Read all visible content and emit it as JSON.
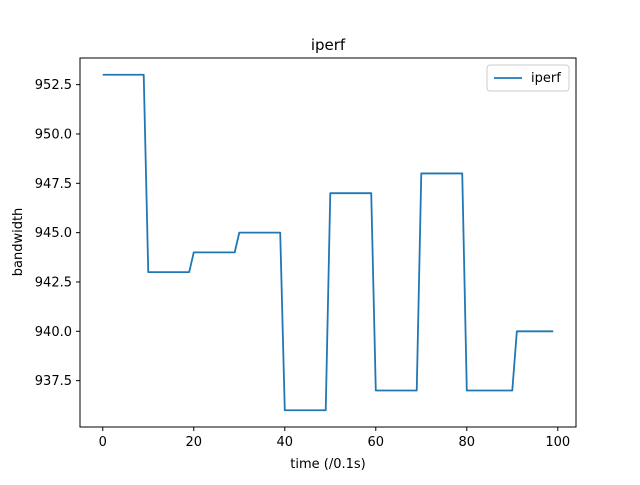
{
  "chart_data": {
    "type": "line",
    "title": "iperf",
    "xlabel": "time (/0.1s)",
    "ylabel": "bandwidth",
    "xlim": [
      -5,
      104
    ],
    "ylim": [
      935.15,
      953.85
    ],
    "xticks": [
      0,
      20,
      40,
      60,
      80,
      100
    ],
    "xtick_labels": [
      "0",
      "20",
      "40",
      "60",
      "80",
      "100"
    ],
    "yticks": [
      937.5,
      940.0,
      942.5,
      945.0,
      947.5,
      950.0,
      952.5
    ],
    "ytick_labels": [
      "937.5",
      "940.0",
      "942.5",
      "945.0",
      "947.5",
      "950.0",
      "952.5"
    ],
    "grid": false,
    "legend_position": "top-right",
    "series": [
      {
        "name": "iperf",
        "color": "#1f77b4",
        "x": [
          0,
          9,
          10,
          19,
          20,
          29,
          30,
          39,
          40,
          49,
          50,
          59,
          60,
          69,
          70,
          79,
          80,
          90,
          91,
          99
        ],
        "y": [
          953,
          953,
          943,
          943,
          944,
          944,
          945,
          945,
          936,
          936,
          947,
          947,
          937,
          937,
          948,
          948,
          937,
          937,
          940,
          940
        ]
      }
    ]
  }
}
